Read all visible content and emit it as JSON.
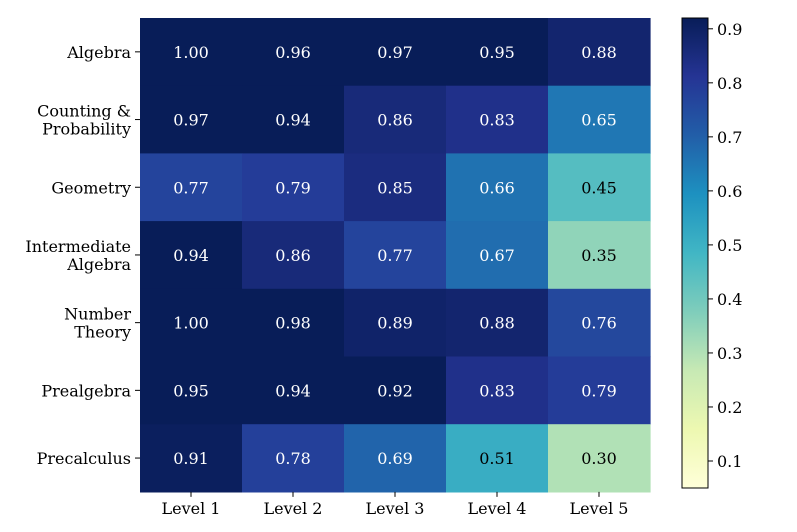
{
  "chart_data": {
    "type": "heatmap",
    "title": "",
    "xlabel": "",
    "ylabel": "",
    "x_categories": [
      "Level 1",
      "Level 2",
      "Level 3",
      "Level 4",
      "Level 5"
    ],
    "y_categories": [
      [
        "Algebra"
      ],
      [
        "Counting &",
        "Probability"
      ],
      [
        "Geometry"
      ],
      [
        "Intermediate",
        "Algebra"
      ],
      [
        "Number",
        "Theory"
      ],
      [
        "Prealgebra"
      ],
      [
        "Precalculus"
      ]
    ],
    "values": [
      [
        1.0,
        0.96,
        0.97,
        0.95,
        0.88
      ],
      [
        0.97,
        0.94,
        0.86,
        0.83,
        0.65
      ],
      [
        0.77,
        0.79,
        0.85,
        0.66,
        0.45
      ],
      [
        0.94,
        0.86,
        0.77,
        0.67,
        0.35
      ],
      [
        1.0,
        0.98,
        0.89,
        0.88,
        0.76
      ],
      [
        0.95,
        0.94,
        0.92,
        0.83,
        0.79
      ],
      [
        0.91,
        0.78,
        0.69,
        0.51,
        0.3
      ]
    ],
    "value_labels": [
      [
        "1.00",
        "0.96",
        "0.97",
        "0.95",
        "0.88"
      ],
      [
        "0.97",
        "0.94",
        "0.86",
        "0.83",
        "0.65"
      ],
      [
        "0.77",
        "0.79",
        "0.85",
        "0.66",
        "0.45"
      ],
      [
        "0.94",
        "0.86",
        "0.77",
        "0.67",
        "0.35"
      ],
      [
        "1.00",
        "0.98",
        "0.89",
        "0.88",
        "0.76"
      ],
      [
        "0.95",
        "0.94",
        "0.92",
        "0.83",
        "0.79"
      ],
      [
        "0.91",
        "0.78",
        "0.69",
        "0.51",
        "0.30"
      ]
    ],
    "colormap": "YlGnBu",
    "color_range": [
      0.05,
      0.92
    ],
    "colorbar": {
      "position": "right",
      "ticks": [
        0.1,
        0.2,
        0.3,
        0.4,
        0.5,
        0.6,
        0.7,
        0.8,
        0.9
      ],
      "tick_labels": [
        "0.1",
        "0.2",
        "0.3",
        "0.4",
        "0.5",
        "0.6",
        "0.7",
        "0.8",
        "0.9"
      ]
    },
    "grid": false,
    "colormap_stops": [
      "#ffffd9",
      "#edf8b1",
      "#c7e9b4",
      "#7fcdbb",
      "#41b6c4",
      "#1d91c0",
      "#225ea8",
      "#253494",
      "#081d58"
    ]
  }
}
